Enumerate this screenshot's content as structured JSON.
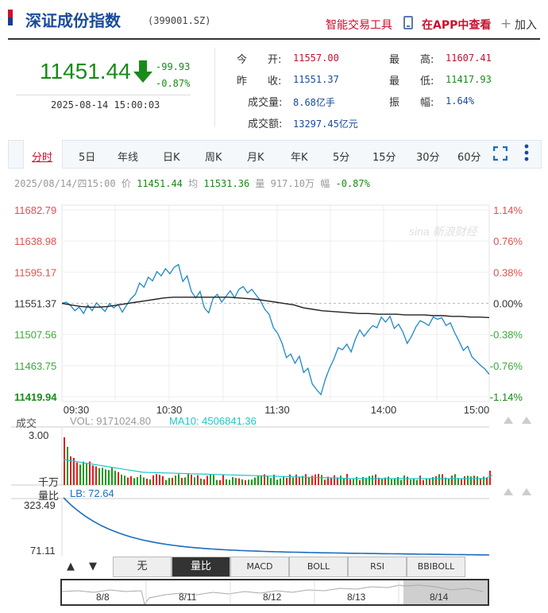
{
  "header": {
    "title": "深证成份指数",
    "code": "(399001.SZ)",
    "tool_link": "智能交易工具",
    "app_link": "在APP中查看",
    "add_link": "加入"
  },
  "quote": {
    "price": "11451.44",
    "change": "-99.93",
    "change_pct": "-0.87%",
    "timestamp": "2025-08-14 15:00:03"
  },
  "stats": {
    "open_label": "今　　开:",
    "open": "11557.00",
    "prev_label": "昨　　收:",
    "prev": "11551.37",
    "volume_label": "成交量:",
    "volume": "8.68亿手",
    "amount_label": "成交额:",
    "amount": "13297.45亿元",
    "high_label": "最　　高:",
    "high": "11607.41",
    "low_label": "最　　低:",
    "low": "11417.93",
    "amp_label": "振　　幅:",
    "amp": "1.64%"
  },
  "tabs": [
    "分时",
    "5日",
    "年线",
    "日K",
    "周K",
    "月K",
    "年K",
    "5分",
    "15分",
    "30分",
    "60分"
  ],
  "active_tab": "分时",
  "info_line": {
    "date": "2025/08/14/四15:00",
    "price_label": "价",
    "price": "11451.44",
    "avg_label": "均",
    "avg": "11531.36",
    "vol_label": "量",
    "vol": "917.10万",
    "amp_label": "幅",
    "amp": "-0.87%"
  },
  "watermark": "sina 新浪财经",
  "chart_data": {
    "type": "line",
    "title": "",
    "x_ticks": [
      "09:30",
      "10:30",
      "11:30",
      "14:00",
      "15:00"
    ],
    "ylim": [
      11419.94,
      11682.79
    ],
    "y_ticks_left": [
      "11682.79",
      "11638.98",
      "11595.17",
      "11551.37",
      "11507.56",
      "11463.75",
      "11419.94"
    ],
    "y_ticks_right": [
      "1.14%",
      "0.76%",
      "0.38%",
      "0.00%",
      "-0.38%",
      "-0.76%",
      "-1.14%"
    ],
    "series": [
      {
        "name": "价",
        "color": "#1e88c8",
        "values": [
          11551.37,
          11553,
          11548,
          11541,
          11546,
          11537,
          11549,
          11541,
          11552,
          11546,
          11540,
          11551,
          11545,
          11550,
          11539,
          11549,
          11558,
          11564,
          11580,
          11574,
          11588,
          11583,
          11596,
          11590,
          11600,
          11593,
          11602,
          11606,
          11582,
          11590,
          11568,
          11559,
          11568,
          11545,
          11538,
          11558,
          11564,
          11553,
          11561,
          11569,
          11559,
          11571,
          11575,
          11566,
          11571,
          11563,
          11555,
          11543,
          11536,
          11517,
          11509,
          11495,
          11475,
          11480,
          11467,
          11477,
          11454,
          11460,
          11438,
          11430,
          11423,
          11444,
          11460,
          11473,
          11489,
          11486,
          11494,
          11483,
          11501,
          11514,
          11505,
          11513,
          11520,
          11517,
          11532,
          11525,
          11533,
          11516,
          11522,
          11511,
          11495,
          11505,
          11518,
          11527,
          11524,
          11520,
          11532,
          11529,
          11531,
          11520,
          11524,
          11510,
          11498,
          11485,
          11491,
          11476,
          11470,
          11464,
          11459,
          11451.44
        ]
      },
      {
        "name": "均",
        "color": "#222222",
        "values": [
          11551.37,
          11549,
          11547,
          11546,
          11546,
          11547,
          11549,
          11551,
          11553,
          11555,
          11557,
          11559,
          11560,
          11560,
          11560,
          11560,
          11560,
          11560,
          11560,
          11559,
          11558,
          11557,
          11555,
          11553,
          11551,
          11549,
          11545,
          11543,
          11541,
          11540,
          11539,
          11538,
          11537,
          11537,
          11536,
          11536,
          11536,
          11535,
          11535,
          11535,
          11534,
          11534,
          11533,
          11533,
          11532,
          11532,
          11531.36
        ]
      }
    ]
  },
  "volume_panel": {
    "label": "成交",
    "vol_label": "VOL: 9171024.80",
    "ma_label": "MA10: 4506841.36",
    "top_value": "3.00",
    "unit": "千万"
  },
  "ratio_panel": {
    "label": "量比",
    "lb_label": "LB: 72.64",
    "top_value": "323.49",
    "bottom_value": "71.11"
  },
  "indicator_buttons": [
    "无",
    "量比",
    "MACD",
    "BOLL",
    "RSI",
    "BBIBOLL"
  ],
  "active_indicator": "量比",
  "timeline": [
    "8/8",
    "8/11",
    "8/12",
    "8/13",
    "8/14"
  ]
}
